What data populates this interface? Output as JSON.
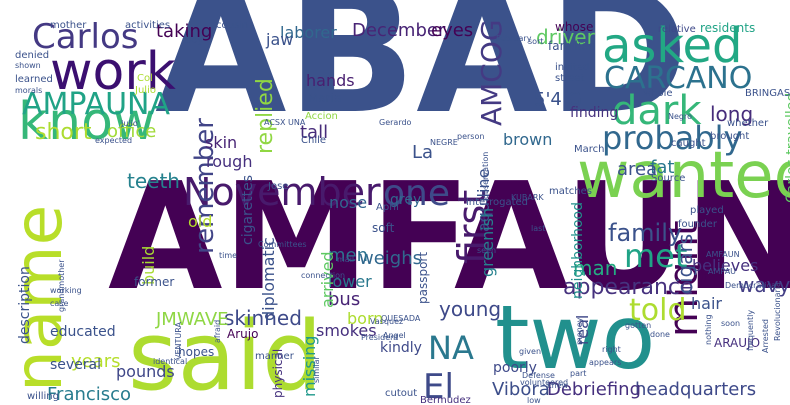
{
  "words": [
    {
      "text": "ABAD",
      "color": "#3b528b",
      "rotated": false
    },
    {
      "text": "AMFAUNA",
      "color": "#440154",
      "rotated": false
    },
    {
      "text": "said",
      "color": "#addc30",
      "rotated": false
    },
    {
      "text": "two",
      "color": "#21908d",
      "rotated": false
    },
    {
      "text": "name",
      "color": "#b8de29",
      "rotated": true
    },
    {
      "text": "wanted",
      "color": "#7ad151",
      "rotated": false
    },
    {
      "text": "work",
      "color": "#3b0f70",
      "rotated": false
    },
    {
      "text": "asked",
      "color": "#22a884",
      "rotated": false
    },
    {
      "text": "know",
      "color": "#35b779",
      "rotated": false
    },
    {
      "text": "Carlos",
      "color": "#443983",
      "rotated": false
    },
    {
      "text": "CARCANO",
      "color": "#2c728e",
      "rotated": false
    },
    {
      "text": "AMPAUNA",
      "color": "#20a386",
      "rotated": false
    },
    {
      "text": "dark",
      "color": "#35b779",
      "rotated": false
    },
    {
      "text": "probably",
      "color": "#31688e",
      "rotated": false
    },
    {
      "text": "November",
      "color": "#481a6c",
      "rotated": false
    },
    {
      "text": "one",
      "color": "#3e4a89",
      "rotated": false
    },
    {
      "text": "might",
      "color": "#440154",
      "rotated": true
    },
    {
      "text": "first",
      "color": "#481a6c",
      "rotated": true
    },
    {
      "text": "remember",
      "color": "#414487",
      "rotated": true
    },
    {
      "text": "met",
      "color": "#20a386",
      "rotated": false
    },
    {
      "text": "told",
      "color": "#addc30",
      "rotated": false
    },
    {
      "text": "NA",
      "color": "#2a788e",
      "rotated": false
    },
    {
      "text": "El",
      "color": "#3e4a89",
      "rotated": false
    },
    {
      "text": "AMCOG",
      "color": "#443a83",
      "rotated": true
    },
    {
      "text": "replied",
      "color": "#90d743",
      "rotated": true
    },
    {
      "text": "long",
      "color": "#472d7b",
      "rotated": false
    },
    {
      "text": "short",
      "color": "#addc30",
      "rotated": false
    },
    {
      "text": "office",
      "color": "#a0da39",
      "rotated": false
    },
    {
      "text": "family",
      "color": "#3b528b",
      "rotated": false
    },
    {
      "text": "appearance",
      "color": "#46327e",
      "rotated": false
    },
    {
      "text": "man",
      "color": "#25ab82",
      "rotated": false
    },
    {
      "text": "Francisco",
      "color": "#287c8e",
      "rotated": false
    },
    {
      "text": "headquarters",
      "color": "#3e4989",
      "rotated": false
    },
    {
      "text": "Debriefing",
      "color": "#46307e",
      "rotated": false
    },
    {
      "text": "Vibora",
      "color": "#3d4e8a",
      "rotated": false
    },
    {
      "text": "taking",
      "color": "#440154",
      "rotated": false
    },
    {
      "text": "laborer",
      "color": "#31688e",
      "rotated": false
    },
    {
      "text": "December",
      "color": "#482475",
      "rotated": false
    },
    {
      "text": "eyes",
      "color": "#440154",
      "rotated": false
    },
    {
      "text": "driver",
      "color": "#5ec962",
      "rotated": false
    },
    {
      "text": "5'4 G",
      "color": "#3b528b",
      "rotated": false
    },
    {
      "text": "hands",
      "color": "#481f70",
      "rotated": false
    },
    {
      "text": "tall",
      "color": "#472c7a",
      "rotated": false
    },
    {
      "text": "brown",
      "color": "#31688e",
      "rotated": false
    },
    {
      "text": "skin",
      "color": "#482475",
      "rotated": false
    },
    {
      "text": "rough",
      "color": "#46307e",
      "rotated": false
    },
    {
      "text": "teeth",
      "color": "#26828e",
      "rotated": false
    },
    {
      "text": "fat",
      "color": "#2a788e",
      "rotated": false
    },
    {
      "text": "area",
      "color": "#3b528b",
      "rotated": false
    },
    {
      "text": "wavy",
      "color": "#433e85",
      "rotated": false
    },
    {
      "text": "believes",
      "color": "#46307e",
      "rotated": false
    },
    {
      "text": "young",
      "color": "#3e4989",
      "rotated": false
    },
    {
      "text": "hair",
      "color": "#3b528b",
      "rotated": false
    },
    {
      "text": "smokes",
      "color": "#46307e",
      "rotated": false
    },
    {
      "text": "bus",
      "color": "#482475",
      "rotated": false
    },
    {
      "text": "lower",
      "color": "#2a788e",
      "rotated": false
    },
    {
      "text": "skinned",
      "color": "#3e4a89",
      "rotated": false
    },
    {
      "text": "JMWAVE",
      "color": "#8fd744",
      "rotated": false
    },
    {
      "text": "years",
      "color": "#b5de2b",
      "rotated": false
    },
    {
      "text": "pounds",
      "color": "#3f4788",
      "rotated": false
    },
    {
      "text": "born",
      "color": "#addc30",
      "rotated": false
    },
    {
      "text": "weighs",
      "color": "#31688e",
      "rotated": false
    },
    {
      "text": "men",
      "color": "#2c728e",
      "rotated": false
    },
    {
      "text": "grey",
      "color": "#31688e",
      "rotated": false
    },
    {
      "text": "nose",
      "color": "#32648e",
      "rotated": false
    },
    {
      "text": "old",
      "color": "#b5de2b",
      "rotated": false
    },
    {
      "text": "La",
      "color": "#3b528b",
      "rotated": false
    },
    {
      "text": "jaw",
      "color": "#3b528b",
      "rotated": false
    },
    {
      "text": "aquiline",
      "color": "#3b528b",
      "rotated": true
    },
    {
      "text": "finding",
      "color": "#46327e",
      "rotated": false
    },
    {
      "text": "March",
      "color": "#3b528b",
      "rotated": false
    },
    {
      "text": "Bermudez",
      "color": "#46307e",
      "rotated": false
    },
    {
      "text": "arrived",
      "color": "#5ec962",
      "rotated": true
    },
    {
      "text": "build",
      "color": "#a8db34",
      "rotated": true
    },
    {
      "text": "cigars",
      "color": "#3b528b",
      "rotated": true
    },
    {
      "text": "greenish",
      "color": "#26828e",
      "rotated": true
    },
    {
      "text": "real",
      "color": "#3f4788",
      "rotated": true
    },
    {
      "text": "missing",
      "color": "#1f988b",
      "rotated": true
    },
    {
      "text": "diplomatic",
      "color": "#3b528b",
      "rotated": true
    },
    {
      "text": "cigarettes",
      "color": "#3b528b",
      "rotated": true
    },
    {
      "text": "neighborhood",
      "color": "#21918c",
      "rotated": true
    },
    {
      "text": "physical",
      "color": "#46327e",
      "rotated": true
    },
    {
      "text": "poorly",
      "color": "#3e4989",
      "rotated": false
    },
    {
      "text": "whose",
      "color": "#440154",
      "rotated": false
    },
    {
      "text": "families",
      "color": "#3b528b",
      "rotated": false
    },
    {
      "text": "residents",
      "color": "#20a386",
      "rotated": false
    },
    {
      "text": "relative",
      "color": "#3e4989",
      "rotated": false
    },
    {
      "text": "ARAUJO",
      "color": "#46307e",
      "rotated": false
    },
    {
      "text": "Carlos travelled",
      "color": "#5ec962",
      "rotated": true
    },
    {
      "text": "description",
      "color": "#3b528b",
      "rotated": true
    },
    {
      "text": "educated",
      "color": "#3b528b",
      "rotated": false
    },
    {
      "text": "several",
      "color": "#3b528b",
      "rotated": false
    },
    {
      "text": "hopes",
      "color": "#3b528b",
      "rotated": false
    },
    {
      "text": "Arujo",
      "color": "#440154",
      "rotated": false
    },
    {
      "text": "Chile",
      "color": "#3b528b",
      "rotated": false
    },
    {
      "text": "Maria",
      "color": "#3b528b",
      "rotated": false
    },
    {
      "text": "Jose",
      "color": "#3b528b",
      "rotated": false
    },
    {
      "text": "April",
      "color": "#3b528b",
      "rotated": false
    },
    {
      "text": "soft",
      "color": "#3b528b",
      "rotated": false
    },
    {
      "text": "kindly",
      "color": "#3e4989",
      "rotated": false
    },
    {
      "text": "passport",
      "color": "#3b528b",
      "rotated": true
    },
    {
      "text": "interrogated",
      "color": "#3b528b",
      "rotated": false
    },
    {
      "text": "former",
      "color": "#3b528b",
      "rotated": false
    },
    {
      "text": "Col",
      "color": "#addc30",
      "rotated": false
    },
    {
      "text": "Julio",
      "color": "#addc30",
      "rotated": false
    },
    {
      "text": "Accion",
      "color": "#90d743",
      "rotated": false
    },
    {
      "text": "brought",
      "color": "#3b528b",
      "rotated": false
    },
    {
      "text": "whether",
      "color": "#3b528b",
      "rotated": false
    },
    {
      "text": "caught",
      "color": "#3b528b",
      "rotated": false
    },
    {
      "text": "matches",
      "color": "#3b528b",
      "rotated": false
    },
    {
      "text": "founder",
      "color": "#3b528b",
      "rotated": false
    },
    {
      "text": "played",
      "color": "#3b528b",
      "rotated": false
    },
    {
      "text": "Source",
      "color": "#3b528b",
      "rotated": false
    },
    {
      "text": "invited",
      "color": "#3b528b",
      "rotated": false
    },
    {
      "text": "street",
      "color": "#3b528b",
      "rotated": false
    },
    {
      "text": "mother",
      "color": "#3b528b",
      "rotated": false
    },
    {
      "text": "activities",
      "color": "#3b528b",
      "rotated": false
    },
    {
      "text": "cousin",
      "color": "#3b528b",
      "rotated": false
    },
    {
      "text": "boy",
      "color": "#3b528b",
      "rotated": false
    },
    {
      "text": "sort",
      "color": "#3b528b",
      "rotated": false
    },
    {
      "text": "February",
      "color": "#3b528b",
      "rotated": false
    },
    {
      "text": "denied",
      "color": "#3b528b",
      "rotated": false
    },
    {
      "text": "shown",
      "color": "#3b528b",
      "rotated": false
    },
    {
      "text": "learned",
      "color": "#3b528b",
      "rotated": false
    },
    {
      "text": "morals",
      "color": "#3b528b",
      "rotated": false
    },
    {
      "text": "Julio'",
      "color": "#3b528b",
      "rotated": false
    },
    {
      "text": "expected",
      "color": "#3b528b",
      "rotated": false
    },
    {
      "text": "ACSX",
      "color": "#3b528b",
      "rotated": false
    },
    {
      "text": "UNA",
      "color": "#3b528b",
      "rotated": false
    },
    {
      "text": "Gerardo",
      "color": "#3b528b",
      "rotated": false
    },
    {
      "text": "NEGRE",
      "color": "#3b528b",
      "rotated": false
    },
    {
      "text": "person",
      "color": "#3b528b",
      "rotated": false
    },
    {
      "text": "KUBARK",
      "color": "#3b528b",
      "rotated": false
    },
    {
      "text": "Negro",
      "color": "#3b528b",
      "rotated": false
    },
    {
      "text": "whole",
      "color": "#3b528b",
      "rotated": false
    },
    {
      "text": "BRINGAS",
      "color": "#3b528b",
      "rotated": false
    },
    {
      "text": "QUESADA",
      "color": "#3b528b",
      "rotated": false
    },
    {
      "text": "Vasquez",
      "color": "#3b528b",
      "rotated": false
    },
    {
      "text": "President",
      "color": "#3b528b",
      "rotated": false
    },
    {
      "text": "connection",
      "color": "#3b528b",
      "rotated": false
    },
    {
      "text": "mail",
      "color": "#3b528b",
      "rotated": false
    },
    {
      "text": "Defense",
      "color": "#3b528b",
      "rotated": false
    },
    {
      "text": "Angel",
      "color": "#3b528b",
      "rotated": false
    },
    {
      "text": "AMFAUN",
      "color": "#3b528b",
      "rotated": false
    },
    {
      "text": "AMPAU",
      "color": "#3b528b",
      "rotated": false
    },
    {
      "text": "Democratica",
      "color": "#3b528b",
      "rotated": false
    },
    {
      "text": "Revolucionaria",
      "color": "#3b528b",
      "rotated": true
    },
    {
      "text": "Arrested",
      "color": "#3b528b",
      "rotated": true
    },
    {
      "text": "frequently",
      "color": "#3b528b",
      "rotated": true
    },
    {
      "text": "soon",
      "color": "#3b528b",
      "rotated": false
    },
    {
      "text": "gotten",
      "color": "#3b528b",
      "rotated": false
    },
    {
      "text": "nothing",
      "color": "#3b528b",
      "rotated": true
    },
    {
      "text": "done",
      "color": "#3b528b",
      "rotated": false
    },
    {
      "text": "appears",
      "color": "#3b528b",
      "rotated": false
    },
    {
      "text": "right",
      "color": "#3b528b",
      "rotated": false
    },
    {
      "text": "money",
      "color": "#3b528b",
      "rotated": true
    },
    {
      "text": "given",
      "color": "#3b528b",
      "rotated": false
    },
    {
      "text": "part",
      "color": "#3b528b",
      "rotated": false
    },
    {
      "text": "volunteered",
      "color": "#3b528b",
      "rotated": false
    },
    {
      "text": "low",
      "color": "#3b528b",
      "rotated": false
    },
    {
      "text": "knew",
      "color": "#3b528b",
      "rotated": false
    },
    {
      "text": "cutout",
      "color": "#3b528b",
      "rotated": false
    },
    {
      "text": "similar",
      "color": "#3b528b",
      "rotated": true
    },
    {
      "text": "manner",
      "color": "#3b528b",
      "rotated": false
    },
    {
      "text": "afraid",
      "color": "#3b528b",
      "rotated": true
    },
    {
      "text": "VENTURA",
      "color": "#3b528b",
      "rotated": true
    },
    {
      "text": "identical",
      "color": "#3b528b",
      "rotated": false
    },
    {
      "text": "willing",
      "color": "#3b528b",
      "rotated": false
    },
    {
      "text": "working",
      "color": "#3b528b",
      "rotated": false
    },
    {
      "text": "case",
      "color": "#3b528b",
      "rotated": false
    },
    {
      "text": "grandmother",
      "color": "#3b528b",
      "rotated": true
    },
    {
      "text": "time",
      "color": "#3b528b",
      "rotated": false
    },
    {
      "text": "Committees",
      "color": "#3b528b",
      "rotated": false
    },
    {
      "text": "seen",
      "color": "#3b528b",
      "rotated": false
    },
    {
      "text": "last",
      "color": "#3b528b",
      "rotated": false
    },
    {
      "text": "observation",
      "color": "#3b528b",
      "rotated": true
    }
  ]
}
